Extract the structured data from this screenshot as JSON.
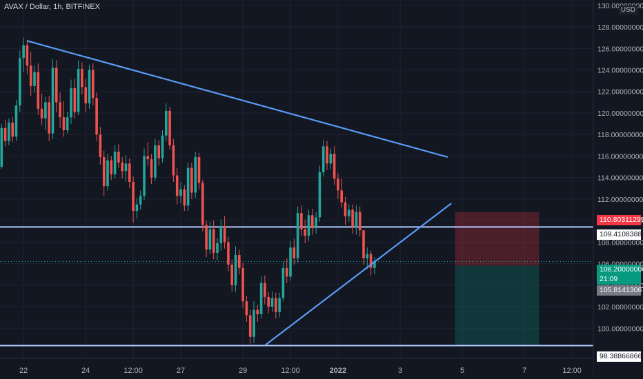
{
  "title": "AVAX / Dollar, 1h, BITFINEX",
  "currency_label": "USD",
  "colors": {
    "background": "#131722",
    "up": "#26a69a",
    "down": "#ef5350",
    "trendline": "#5b9cf6",
    "horizontal_line": "#b2ccff",
    "stop_zone": "rgba(242,54,69,0.25)",
    "target_zone": "rgba(8,153,129,0.25)"
  },
  "price_tags": {
    "stop": "110.80311295",
    "entry_line": "109.41083882",
    "last_price": "106.20000000",
    "countdown": "21:09",
    "entry": "105.81413067",
    "support": "98.38866866"
  },
  "chart_data": {
    "type": "candlestick",
    "symbol": "AVAX / Dollar",
    "interval": "1h",
    "exchange": "BITFINEX",
    "y_unit": "USD",
    "ylim": [
      97.2,
      130.5
    ],
    "y_ticks": [
      "100.00000000",
      "102.00000000",
      "104.00000000",
      "106.00000000",
      "108.00000000",
      "110.00000000",
      "112.00000000",
      "114.00000000",
      "116.00000000",
      "118.00000000",
      "120.00000000",
      "122.00000000",
      "124.00000000",
      "126.00000000",
      "128.00000000",
      "130.00000000"
    ],
    "x_ticks": [
      {
        "label": "22",
        "index": 7
      },
      {
        "label": "24",
        "index": 24
      },
      {
        "label": "12:00",
        "index": 37
      },
      {
        "label": "27",
        "index": 50
      },
      {
        "label": "29",
        "index": 67
      },
      {
        "label": "12:00",
        "index": 80
      },
      {
        "label": "2022",
        "index": 93
      },
      {
        "label": "3",
        "index": 110
      },
      {
        "label": "5",
        "index": 127
      },
      {
        "label": "7",
        "index": 144
      },
      {
        "label": "12:00",
        "index": 157
      }
    ],
    "candles": [
      [
        115.2,
        116.8,
        114.2,
        115.0
      ],
      [
        115.0,
        119.0,
        114.8,
        118.6
      ],
      [
        118.6,
        119.4,
        116.9,
        117.4
      ],
      [
        117.4,
        119.5,
        117.0,
        119.1
      ],
      [
        119.1,
        119.6,
        117.3,
        117.8
      ],
      [
        117.8,
        121.2,
        117.4,
        120.7
      ],
      [
        120.7,
        125.8,
        120.1,
        125.1
      ],
      [
        125.1,
        127.0,
        123.8,
        126.3
      ],
      [
        126.3,
        126.8,
        123.6,
        124.4
      ],
      [
        124.4,
        125.7,
        121.6,
        122.5
      ],
      [
        122.5,
        124.4,
        121.9,
        123.8
      ],
      [
        123.8,
        124.6,
        119.8,
        120.4
      ],
      [
        120.4,
        121.8,
        118.9,
        119.5
      ],
      [
        119.5,
        121.5,
        118.4,
        121.0
      ],
      [
        121.0,
        121.6,
        117.4,
        118.1
      ],
      [
        118.1,
        125.0,
        117.6,
        124.2
      ],
      [
        124.2,
        124.9,
        120.1,
        121.0
      ],
      [
        121.0,
        121.9,
        118.6,
        119.6
      ],
      [
        119.6,
        121.1,
        117.8,
        118.4
      ],
      [
        118.4,
        120.1,
        118.1,
        119.6
      ],
      [
        119.6,
        123.1,
        119.0,
        122.3
      ],
      [
        122.3,
        123.2,
        119.5,
        120.1
      ],
      [
        120.1,
        124.9,
        119.8,
        124.1
      ],
      [
        124.1,
        124.7,
        121.7,
        122.4
      ],
      [
        122.4,
        123.2,
        120.1,
        120.9
      ],
      [
        120.9,
        124.5,
        120.4,
        124.0
      ],
      [
        124.0,
        124.6,
        120.7,
        121.4
      ],
      [
        121.4,
        121.9,
        117.4,
        118.0
      ],
      [
        118.0,
        118.7,
        115.2,
        115.9
      ],
      [
        115.9,
        116.5,
        112.3,
        113.2
      ],
      [
        113.2,
        116.2,
        112.8,
        115.6
      ],
      [
        115.6,
        116.0,
        113.8,
        114.3
      ],
      [
        114.3,
        117.0,
        113.9,
        116.4
      ],
      [
        116.4,
        117.1,
        114.9,
        115.4
      ],
      [
        115.4,
        115.9,
        113.9,
        114.6
      ],
      [
        114.6,
        116.1,
        113.6,
        115.3
      ],
      [
        115.3,
        115.8,
        113.0,
        113.6
      ],
      [
        113.6,
        114.1,
        109.8,
        110.9
      ],
      [
        110.9,
        112.1,
        110.2,
        111.5
      ],
      [
        111.5,
        112.8,
        111.0,
        112.3
      ],
      [
        112.3,
        116.7,
        111.9,
        116.0
      ],
      [
        116.0,
        117.3,
        115.1,
        115.7
      ],
      [
        115.7,
        116.2,
        113.4,
        114.0
      ],
      [
        114.0,
        117.6,
        113.7,
        117.0
      ],
      [
        117.0,
        117.5,
        115.1,
        115.8
      ],
      [
        115.8,
        118.4,
        115.4,
        117.9
      ],
      [
        117.9,
        120.9,
        117.4,
        120.2
      ],
      [
        120.2,
        120.6,
        116.6,
        117.0
      ],
      [
        117.0,
        117.6,
        113.6,
        114.2
      ],
      [
        114.2,
        114.9,
        111.5,
        112.3
      ],
      [
        112.3,
        113.6,
        111.6,
        112.9
      ],
      [
        112.9,
        113.3,
        110.9,
        111.4
      ],
      [
        111.4,
        115.4,
        110.9,
        114.9
      ],
      [
        114.9,
        115.4,
        112.0,
        112.6
      ],
      [
        112.6,
        116.4,
        112.1,
        115.9
      ],
      [
        115.9,
        116.3,
        112.9,
        113.5
      ],
      [
        113.5,
        113.8,
        109.0,
        109.6
      ],
      [
        109.6,
        110.0,
        106.6,
        107.3
      ],
      [
        107.3,
        109.9,
        106.9,
        109.2
      ],
      [
        109.2,
        110.0,
        106.4,
        107.0
      ],
      [
        107.0,
        108.4,
        106.3,
        107.9
      ],
      [
        107.9,
        110.1,
        107.2,
        109.5
      ],
      [
        109.5,
        110.4,
        107.4,
        108.0
      ],
      [
        108.0,
        108.5,
        105.3,
        105.9
      ],
      [
        105.9,
        106.4,
        103.4,
        104.0
      ],
      [
        104.0,
        107.6,
        103.4,
        106.8
      ],
      [
        106.8,
        107.3,
        105.0,
        105.6
      ],
      [
        105.6,
        106.1,
        101.9,
        102.5
      ],
      [
        102.5,
        103.0,
        100.6,
        101.2
      ],
      [
        101.2,
        101.7,
        98.5,
        99.2
      ],
      [
        99.2,
        102.5,
        98.6,
        101.7
      ],
      [
        101.7,
        102.2,
        100.6,
        101.3
      ],
      [
        101.3,
        104.8,
        100.9,
        104.2
      ],
      [
        104.2,
        104.9,
        102.2,
        102.9
      ],
      [
        102.9,
        103.4,
        101.4,
        102.0
      ],
      [
        102.0,
        103.4,
        101.5,
        102.8
      ],
      [
        102.8,
        103.3,
        100.9,
        101.5
      ],
      [
        101.5,
        103.3,
        101.0,
        102.8
      ],
      [
        102.8,
        106.2,
        102.5,
        105.6
      ],
      [
        105.6,
        106.5,
        104.2,
        104.8
      ],
      [
        104.8,
        108.1,
        104.4,
        107.5
      ],
      [
        107.5,
        108.3,
        105.9,
        106.5
      ],
      [
        106.5,
        111.3,
        106.1,
        110.7
      ],
      [
        110.7,
        111.4,
        108.6,
        109.2
      ],
      [
        109.2,
        110.1,
        107.9,
        108.6
      ],
      [
        108.6,
        111.0,
        108.1,
        110.5
      ],
      [
        110.5,
        111.1,
        108.7,
        109.3
      ],
      [
        109.3,
        110.8,
        108.8,
        110.3
      ],
      [
        110.3,
        115.1,
        109.9,
        114.5
      ],
      [
        114.5,
        117.5,
        114.1,
        116.9
      ],
      [
        116.9,
        117.4,
        114.7,
        115.3
      ],
      [
        115.3,
        116.7,
        114.8,
        116.2
      ],
      [
        116.2,
        116.9,
        113.3,
        113.9
      ],
      [
        113.9,
        114.4,
        112.0,
        112.8
      ],
      [
        112.8,
        113.9,
        111.2,
        111.7
      ],
      [
        111.7,
        112.2,
        109.6,
        110.4
      ],
      [
        110.4,
        111.5,
        109.9,
        111.0
      ],
      [
        111.0,
        111.5,
        108.8,
        109.4
      ],
      [
        109.4,
        111.4,
        108.7,
        110.8
      ],
      [
        110.8,
        111.3,
        108.5,
        109.1
      ],
      [
        109.1,
        108.9,
        105.9,
        106.5
      ],
      [
        106.5,
        107.5,
        105.5,
        106.9
      ],
      [
        106.9,
        107.2,
        104.9,
        105.6
      ],
      [
        105.6,
        106.6,
        105.0,
        106.2
      ]
    ]
  },
  "annotations": {
    "trendline_upper": {
      "from": {
        "index": 8,
        "price": 126.7
      },
      "to": {
        "index": 123,
        "price": 115.9
      }
    },
    "trendline_lower": {
      "from": {
        "index": 73,
        "price": 98.4
      },
      "to": {
        "index": 124,
        "price": 111.6
      }
    },
    "h_line_entry": 109.41083882,
    "h_line_support": 98.38866866,
    "stop_zone": {
      "from_index": 125,
      "to_index": 148,
      "top": 110.80311295,
      "bottom": 105.81413067
    },
    "target_zone": {
      "from_index": 125,
      "to_index": 148,
      "top": 105.81413067,
      "bottom": 98.38866866
    }
  }
}
